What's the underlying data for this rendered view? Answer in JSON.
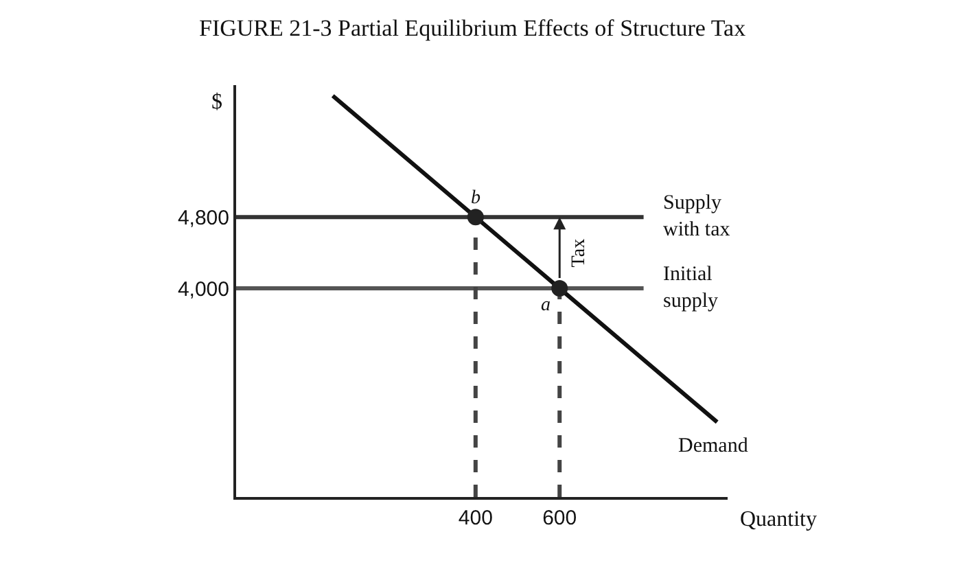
{
  "chart_data": {
    "type": "line",
    "title": "FIGURE 21-3 Partial Equilibrium Effects of Structure Tax",
    "xlabel": "Quantity",
    "ylabel": "$",
    "xlim": [
      -170,
      1000
    ],
    "xticks": [
      400,
      600
    ],
    "ylim": [
      1660,
      6280
    ],
    "yticks": [
      {
        "value": 4000,
        "label": "4,000"
      },
      {
        "value": 4800,
        "label": "4,800"
      }
    ],
    "grid": false,
    "legend": false,
    "marker": "none",
    "line_style": "solid",
    "series": [
      {
        "name": "Supply with tax",
        "color": "#333333",
        "x": [
          -170,
          800
        ],
        "values": [
          4800,
          4800
        ]
      },
      {
        "name": "Initial supply",
        "color": "#555555",
        "x": [
          -170,
          800
        ],
        "values": [
          4000,
          4000
        ]
      },
      {
        "name": "Demand",
        "color": "#111111",
        "x": [
          60,
          400,
          600,
          975
        ],
        "values": [
          6160,
          4800,
          4000,
          2500
        ]
      },
      {
        "color": "#444444",
        "x": [
          400,
          400
        ],
        "values": [
          1660,
          4800
        ],
        "line_style": "dashed"
      },
      {
        "color": "#444444",
        "x": [
          600,
          600
        ],
        "values": [
          1660,
          4000
        ],
        "line_style": "dashed"
      },
      {
        "type": "scatter",
        "color": "#222222",
        "marker": "circle",
        "x": [
          400,
          600
        ],
        "values": [
          4800,
          4000
        ]
      }
    ],
    "annotations": [
      {
        "text": "b",
        "x": 400,
        "y": 4800
      },
      {
        "text": "a",
        "x": 600,
        "y": 4000
      },
      "Tax"
    ]
  }
}
